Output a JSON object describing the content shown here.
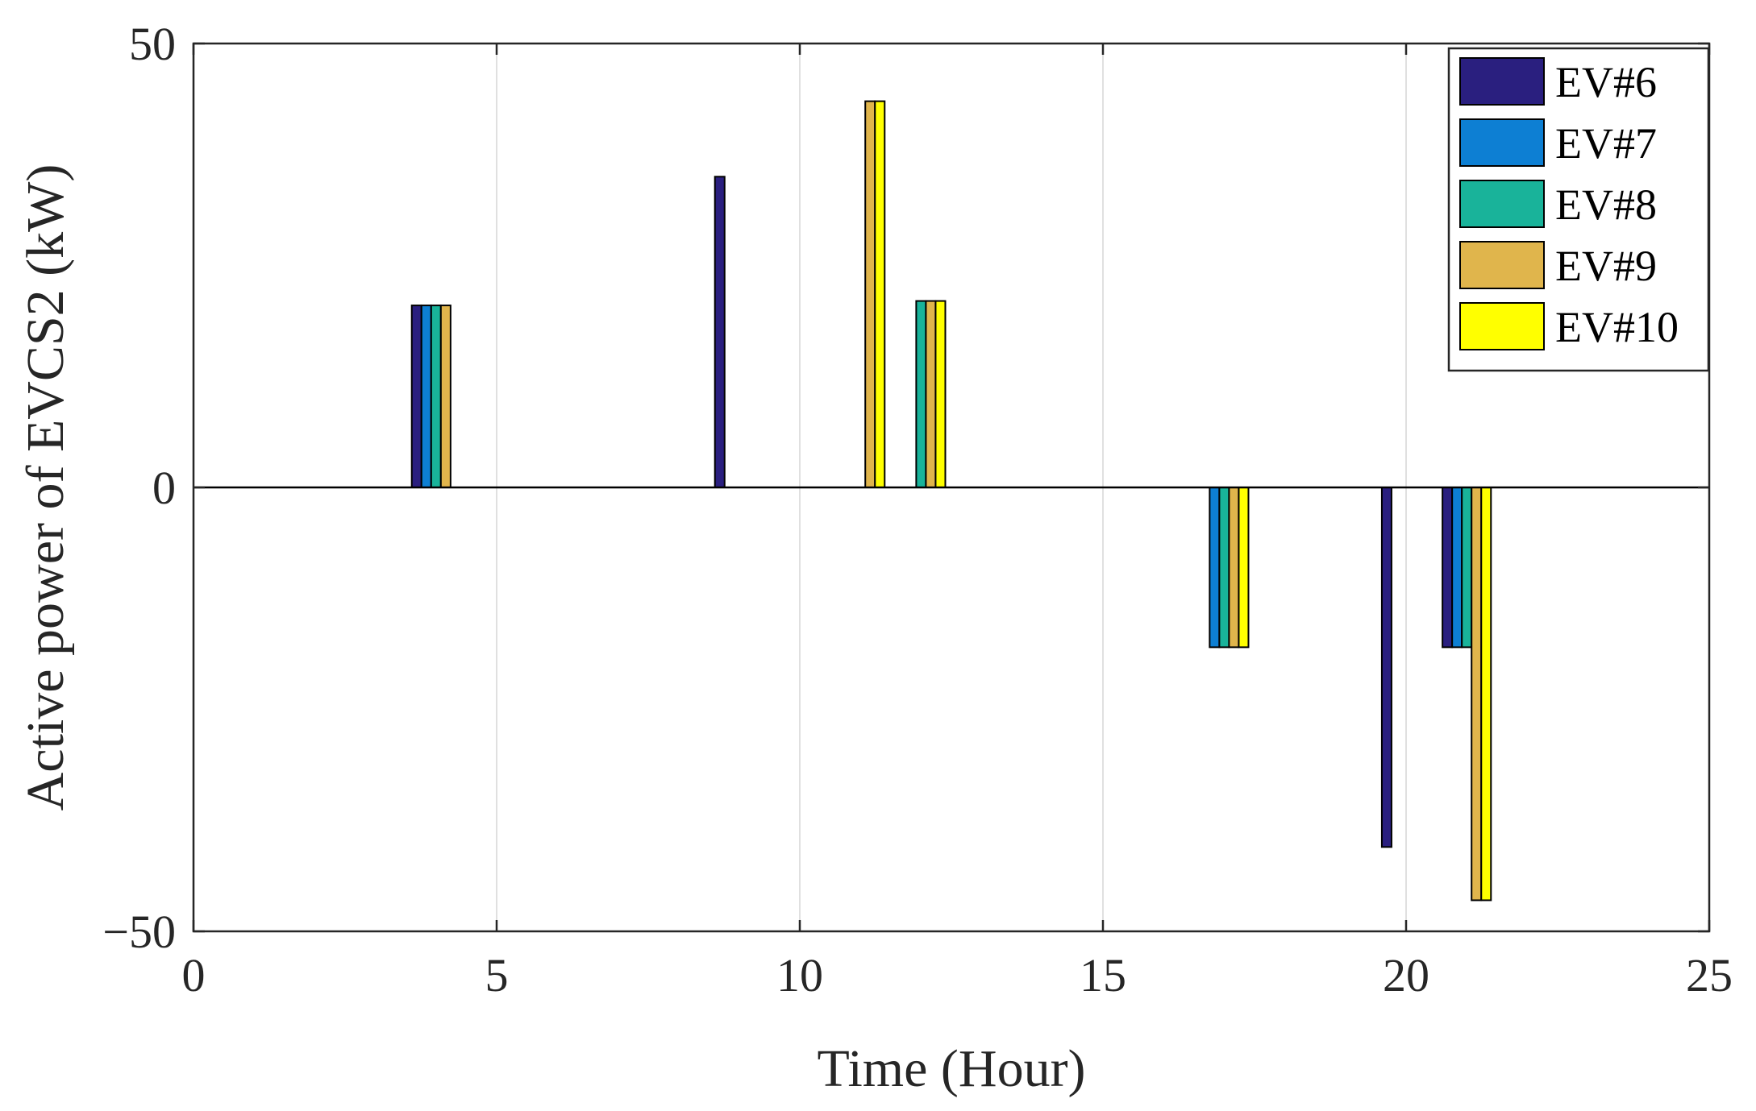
{
  "chart_data": {
    "type": "bar",
    "xlabel": "Time (Hour)",
    "ylabel": "Active power of EVCS2 (kW)",
    "xlim": [
      0,
      25
    ],
    "ylim": [
      -50,
      50
    ],
    "xticks": [
      0,
      5,
      10,
      15,
      20,
      25
    ],
    "yticks": [
      -50,
      0,
      50
    ],
    "xtick_labels": [
      "0",
      "5",
      "10",
      "15",
      "20",
      "25"
    ],
    "ytick_labels": [
      "−50",
      "0",
      "50"
    ],
    "grid": "vertical",
    "legend_position": "top-right",
    "x": [
      4,
      9,
      11,
      12,
      17,
      20,
      21
    ],
    "series": [
      {
        "name": "EV#6",
        "color": "#2a1f7f",
        "values": [
          20.5,
          35,
          0,
          0,
          0,
          -40.5,
          -18
        ]
      },
      {
        "name": "EV#7",
        "color": "#0d7fd3",
        "values": [
          20.5,
          0,
          0,
          0,
          -18,
          0,
          -18
        ]
      },
      {
        "name": "EV#8",
        "color": "#19b39a",
        "values": [
          20.5,
          0,
          0,
          21,
          -18,
          0,
          -18
        ]
      },
      {
        "name": "EV#9",
        "color": "#e0b54c",
        "values": [
          20.5,
          0,
          43.5,
          21,
          -18,
          0,
          -46.5
        ]
      },
      {
        "name": "EV#10",
        "color": "#ffff00",
        "values": [
          0,
          0,
          43.5,
          21,
          -18,
          0,
          -46.5
        ]
      }
    ]
  }
}
